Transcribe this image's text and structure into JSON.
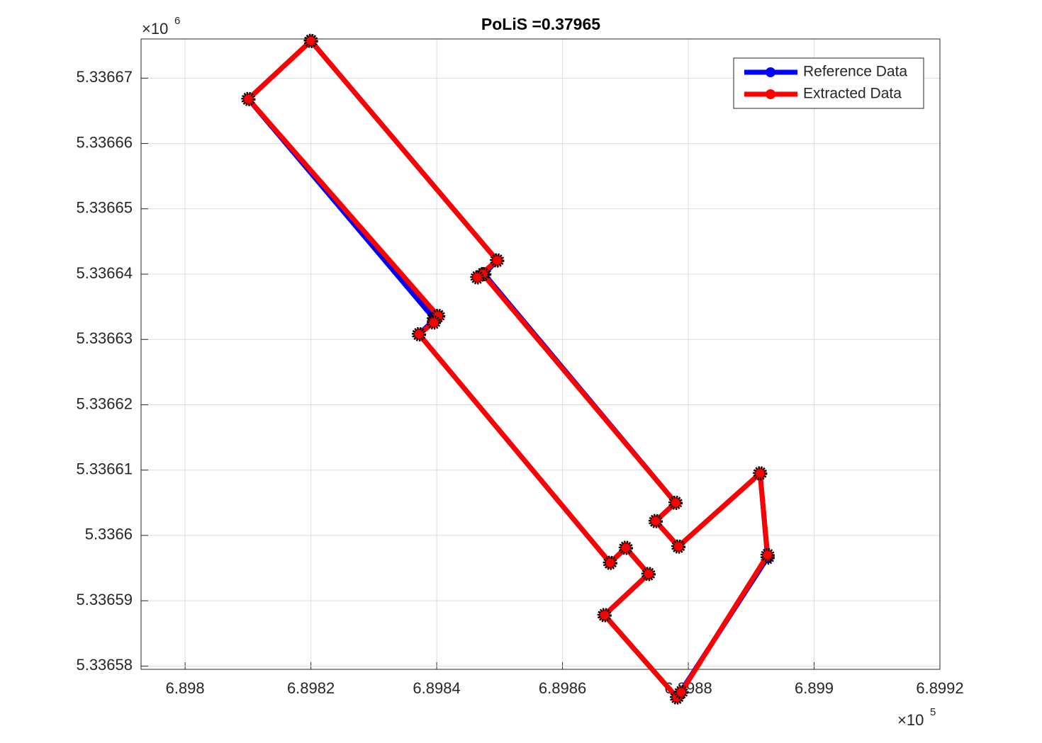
{
  "chart_data": {
    "type": "line",
    "title": "PoLiS =0.37965",
    "xlim": [
      6.89793,
      6.8992
    ],
    "ylim": [
      5.3365795,
      5.336676
    ],
    "xticks": [
      6.898,
      6.8982,
      6.8984,
      6.8986,
      6.8988,
      6.899,
      6.8992
    ],
    "yticks": [
      5.33658,
      5.33659,
      5.3366,
      5.33661,
      5.33662,
      5.33663,
      5.33664,
      5.33665,
      5.33666,
      5.33667
    ],
    "x_multiplier": {
      "base": "×10",
      "power": "5"
    },
    "y_multiplier": {
      "base": "×10",
      "power": "6"
    },
    "grid": true,
    "legend": "northeast",
    "series": [
      {
        "name": "Reference Data",
        "color": "#0000ff",
        "x": [
          6.8982,
          6.8981006,
          6.8983955,
          6.8984023,
          6.8983718,
          6.8986757,
          6.8987006,
          6.8987367,
          6.8986667,
          6.8987819,
          6.898926,
          6.8989141,
          6.8987842,
          6.898748,
          6.8987797,
          6.8984757,
          6.898496,
          6.8982
        ],
        "values": [
          5.3366757,
          5.3366668,
          5.3366332,
          5.3366336,
          5.3366308,
          5.3365958,
          5.3365981,
          5.3365941,
          5.3365878,
          5.3365752,
          5.3365966,
          5.3366095,
          5.3365983,
          5.3366022,
          5.336605,
          5.33664,
          5.3366421,
          5.3366757
        ]
      },
      {
        "name": "Extracted Data",
        "color": "#ff0000",
        "x": [
          6.8982,
          6.8981006,
          6.8984023,
          6.8983955,
          6.8983718,
          6.8986757,
          6.8987006,
          6.8987367,
          6.8986667,
          6.8987819,
          6.8987887,
          6.898926,
          6.8989141,
          6.8987842,
          6.898748,
          6.8987797,
          6.8984734,
          6.8984644,
          6.898496,
          6.8982
        ],
        "values": [
          5.3366757,
          5.3366668,
          5.3366336,
          5.3366326,
          5.3366308,
          5.3365958,
          5.3365981,
          5.3365941,
          5.3365878,
          5.3365752,
          5.336576,
          5.336597,
          5.3366095,
          5.3365983,
          5.3366022,
          5.336605,
          5.33664,
          5.3366395,
          5.3366421,
          5.3366757
        ]
      }
    ]
  }
}
